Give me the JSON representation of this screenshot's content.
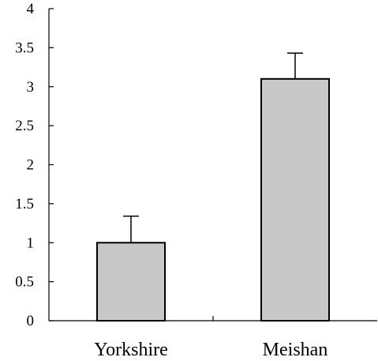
{
  "chart_data": {
    "type": "bar",
    "categories": [
      "Yorkshire",
      "Meishan"
    ],
    "values": [
      1.0,
      3.1
    ],
    "error_bars": [
      0.34,
      0.33
    ],
    "ylim": [
      0,
      4
    ],
    "yticks": [
      "0",
      "0.5",
      "1",
      "1.5",
      "2",
      "2.5",
      "3",
      "3.5",
      "4"
    ],
    "title": "",
    "xlabel": "",
    "ylabel": "",
    "grid": false,
    "bar_color": "#c8c8c8",
    "edge_color": "#000000"
  }
}
